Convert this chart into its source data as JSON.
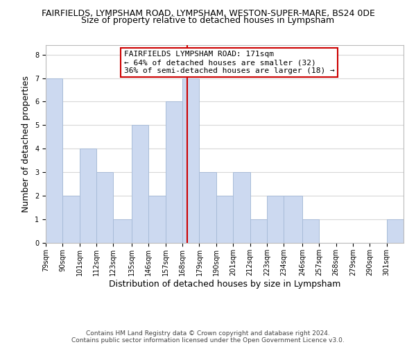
{
  "title_line1": "FAIRFIELDS, LYMPSHAM ROAD, LYMPSHAM, WESTON-SUPER-MARE, BS24 0DE",
  "title_line2": "Size of property relative to detached houses in Lympsham",
  "xlabel": "Distribution of detached houses by size in Lympsham",
  "ylabel": "Number of detached properties",
  "bin_labels": [
    "79sqm",
    "90sqm",
    "101sqm",
    "112sqm",
    "123sqm",
    "135sqm",
    "146sqm",
    "157sqm",
    "168sqm",
    "179sqm",
    "190sqm",
    "201sqm",
    "212sqm",
    "223sqm",
    "234sqm",
    "246sqm",
    "257sqm",
    "268sqm",
    "279sqm",
    "290sqm",
    "301sqm"
  ],
  "bin_edges": [
    79,
    90,
    101,
    112,
    123,
    135,
    146,
    157,
    168,
    179,
    190,
    201,
    212,
    223,
    234,
    246,
    257,
    268,
    279,
    290,
    301,
    312
  ],
  "counts": [
    7,
    2,
    4,
    3,
    1,
    5,
    2,
    6,
    7,
    3,
    2,
    3,
    1,
    2,
    2,
    1,
    0,
    0,
    0,
    0,
    1
  ],
  "bar_color": "#ccd9f0",
  "bar_edgecolor": "#a8bcd8",
  "property_size": 171,
  "vline_color": "#cc0000",
  "annotation_line1": "FAIRFIELDS LYMPSHAM ROAD: 171sqm",
  "annotation_line2": "← 64% of detached houses are smaller (32)",
  "annotation_line3": "36% of semi-detached houses are larger (18) →",
  "annotation_box_edgecolor": "#cc0000",
  "annotation_box_facecolor": "#ffffff",
  "ylim": [
    0,
    8.4
  ],
  "yticks": [
    0,
    1,
    2,
    3,
    4,
    5,
    6,
    7,
    8
  ],
  "footer_line1": "Contains HM Land Registry data © Crown copyright and database right 2024.",
  "footer_line2": "Contains public sector information licensed under the Open Government Licence v3.0.",
  "background_color": "#ffffff",
  "grid_color": "#d8d8d8",
  "title_fontsize": 9,
  "subtitle_fontsize": 9,
  "axis_label_fontsize": 9,
  "tick_fontsize": 7,
  "annotation_fontsize": 8,
  "footer_fontsize": 6.5
}
